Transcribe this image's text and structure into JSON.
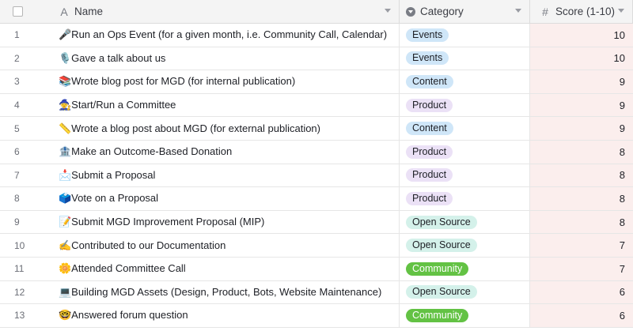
{
  "header": {
    "name_label": "Name",
    "category_label": "Category",
    "score_label": "Score (1-10)",
    "name_icon": "A",
    "score_icon": "#"
  },
  "colors": {
    "Events": "#cfe6f8",
    "Content": "#cfe6f8",
    "Product": "#ebe1f6",
    "Open Source": "#d4f1ea",
    "Community": "#63c244",
    "community_text": "#ffffff",
    "score_bg": "#fbeeed"
  },
  "rows": [
    {
      "num": "1",
      "name": "🎤Run an Ops Event (for a given month, i.e. Community Call, Calendar)",
      "category": "Events",
      "score": "10"
    },
    {
      "num": "2",
      "name": "🎙️Gave a talk about us",
      "category": "Events",
      "score": "10"
    },
    {
      "num": "3",
      "name": "📚Wrote blog post for MGD (for internal publication)",
      "category": "Content",
      "score": "9"
    },
    {
      "num": "4",
      "name": "🧙Start/Run a Committee",
      "category": "Product",
      "score": "9"
    },
    {
      "num": "5",
      "name": "📏Wrote a blog post about MGD (for external publication)",
      "category": "Content",
      "score": "9"
    },
    {
      "num": "6",
      "name": "🏦Make an Outcome-Based Donation",
      "category": "Product",
      "score": "8"
    },
    {
      "num": "7",
      "name": "📩Submit a Proposal",
      "category": "Product",
      "score": "8"
    },
    {
      "num": "8",
      "name": "🗳️Vote on a Proposal",
      "category": "Product",
      "score": "8"
    },
    {
      "num": "9",
      "name": "📝Submit MGD Improvement Proposal (MIP)",
      "category": "Open Source",
      "score": "8"
    },
    {
      "num": "10",
      "name": "✍️Contributed to our Documentation",
      "category": "Open Source",
      "score": "7"
    },
    {
      "num": "11",
      "name": "🌼Attended Committee Call",
      "category": "Community",
      "score": "7"
    },
    {
      "num": "12",
      "name": "💻Building MGD Assets (Design, Product, Bots, Website Maintenance)",
      "category": "Open Source",
      "score": "6"
    },
    {
      "num": "13",
      "name": "🤓Answered forum question",
      "category": "Community",
      "score": "6"
    }
  ]
}
